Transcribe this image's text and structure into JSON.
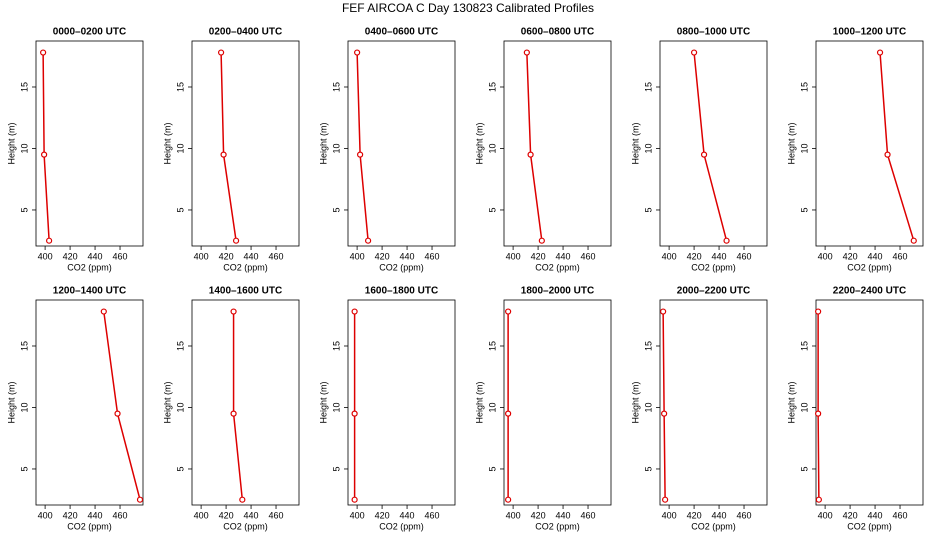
{
  "title": "FEF AIRCOA C  Day 130823  Calibrated Profiles",
  "chart_data": [
    {
      "type": "line",
      "title": "0000–0200 UTC",
      "xlabel": "CO2 (ppm)",
      "ylabel": "Height (m)",
      "x": [
        403.2,
        399.2,
        398.4
      ],
      "y": [
        2.5,
        9.5,
        17.8
      ],
      "color": "#dd0000",
      "xlim": [
        392.7,
        478.4
      ],
      "ylim": [
        2.07,
        18.74
      ],
      "xticks": [
        400,
        420,
        440,
        460
      ],
      "yticks": [
        5,
        10,
        15
      ]
    },
    {
      "type": "line",
      "title": "0200–0400 UTC",
      "xlabel": "CO2 (ppm)",
      "ylabel": "Height (m)",
      "x": [
        428,
        418,
        416
      ],
      "y": [
        2.5,
        9.5,
        17.8
      ],
      "color": "#dd0000",
      "xlim": [
        392.7,
        478.4
      ],
      "ylim": [
        2.07,
        18.74
      ],
      "xticks": [
        400,
        420,
        440,
        460
      ],
      "yticks": [
        5,
        10,
        15
      ]
    },
    {
      "type": "line",
      "title": "0400–0600 UTC",
      "xlabel": "CO2 (ppm)",
      "ylabel": "Height (m)",
      "x": [
        408.8,
        402.4,
        400
      ],
      "y": [
        2.5,
        9.5,
        17.8
      ],
      "color": "#dd0000",
      "xlim": [
        392.7,
        478.4
      ],
      "ylim": [
        2.07,
        18.74
      ],
      "xticks": [
        400,
        420,
        440,
        460
      ],
      "yticks": [
        5,
        10,
        15
      ]
    },
    {
      "type": "line",
      "title": "0600–0800 UTC",
      "xlabel": "CO2 (ppm)",
      "ylabel": "Height (m)",
      "x": [
        423,
        414,
        411
      ],
      "y": [
        2.5,
        9.5,
        17.8
      ],
      "color": "#dd0000",
      "xlim": [
        392.7,
        478.4
      ],
      "ylim": [
        2.07,
        18.74
      ],
      "xticks": [
        400,
        420,
        440,
        460
      ],
      "yticks": [
        5,
        10,
        15
      ]
    },
    {
      "type": "line",
      "title": "0800–1000 UTC",
      "xlabel": "CO2 (ppm)",
      "ylabel": "Height (m)",
      "x": [
        446,
        428,
        420
      ],
      "y": [
        2.5,
        9.5,
        17.8
      ],
      "color": "#dd0000",
      "xlim": [
        392.7,
        478.4
      ],
      "ylim": [
        2.07,
        18.74
      ],
      "xticks": [
        400,
        420,
        440,
        460
      ],
      "yticks": [
        5,
        10,
        15
      ]
    },
    {
      "type": "line",
      "title": "1000–1200 UTC",
      "xlabel": "CO2 (ppm)",
      "ylabel": "Height (m)",
      "x": [
        471,
        450,
        444
      ],
      "y": [
        2.5,
        9.5,
        17.8
      ],
      "color": "#dd0000",
      "xlim": [
        392.7,
        478.4
      ],
      "ylim": [
        2.07,
        18.74
      ],
      "xticks": [
        400,
        420,
        440,
        460
      ],
      "yticks": [
        5,
        10,
        15
      ]
    },
    {
      "type": "line",
      "title": "1200–1400 UTC",
      "xlabel": "CO2 (ppm)",
      "ylabel": "Height (m)",
      "x": [
        476,
        458,
        447
      ],
      "y": [
        2.5,
        9.5,
        17.8
      ],
      "color": "#dd0000",
      "xlim": [
        392.7,
        478.4
      ],
      "ylim": [
        2.07,
        18.74
      ],
      "xticks": [
        400,
        420,
        440,
        460
      ],
      "yticks": [
        5,
        10,
        15
      ]
    },
    {
      "type": "line",
      "title": "1400–1600 UTC",
      "xlabel": "CO2 (ppm)",
      "ylabel": "Height (m)",
      "x": [
        433,
        426,
        426
      ],
      "y": [
        2.5,
        9.5,
        17.8
      ],
      "color": "#dd0000",
      "xlim": [
        392.7,
        478.4
      ],
      "ylim": [
        2.07,
        18.74
      ],
      "xticks": [
        400,
        420,
        440,
        460
      ],
      "yticks": [
        5,
        10,
        15
      ]
    },
    {
      "type": "line",
      "title": "1600–1800 UTC",
      "xlabel": "CO2 (ppm)",
      "ylabel": "Height (m)",
      "x": [
        398,
        398,
        398
      ],
      "y": [
        2.5,
        9.5,
        17.8
      ],
      "color": "#dd0000",
      "xlim": [
        392.7,
        478.4
      ],
      "ylim": [
        2.07,
        18.74
      ],
      "xticks": [
        400,
        420,
        440,
        460
      ],
      "yticks": [
        5,
        10,
        15
      ]
    },
    {
      "type": "line",
      "title": "1800–2000 UTC",
      "xlabel": "CO2 (ppm)",
      "ylabel": "Height (m)",
      "x": [
        396,
        396,
        396
      ],
      "y": [
        2.5,
        9.5,
        17.8
      ],
      "color": "#dd0000",
      "xlim": [
        392.7,
        478.4
      ],
      "ylim": [
        2.07,
        18.74
      ],
      "xticks": [
        400,
        420,
        440,
        460
      ],
      "yticks": [
        5,
        10,
        15
      ]
    },
    {
      "type": "line",
      "title": "2000–2200 UTC",
      "xlabel": "CO2 (ppm)",
      "ylabel": "Height (m)",
      "x": [
        396.8,
        396,
        395.2
      ],
      "y": [
        2.5,
        9.5,
        17.8
      ],
      "color": "#dd0000",
      "xlim": [
        392.7,
        478.4
      ],
      "ylim": [
        2.07,
        18.74
      ],
      "xticks": [
        400,
        420,
        440,
        460
      ],
      "yticks": [
        5,
        10,
        15
      ]
    },
    {
      "type": "line",
      "title": "2200–2400 UTC",
      "xlabel": "CO2 (ppm)",
      "ylabel": "Height (m)",
      "x": [
        395,
        394.4,
        394.4
      ],
      "y": [
        2.5,
        9.5,
        17.8
      ],
      "color": "#dd0000",
      "xlim": [
        392.7,
        478.4
      ],
      "ylim": [
        2.07,
        18.74
      ],
      "xticks": [
        400,
        420,
        440,
        460
      ],
      "yticks": [
        5,
        10,
        15
      ]
    }
  ]
}
